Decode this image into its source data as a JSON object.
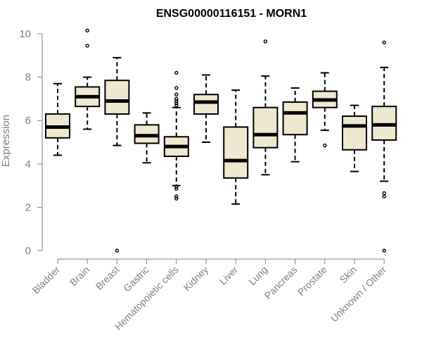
{
  "chart_data": {
    "type": "box",
    "title": "ENSG00000116151 - MORN1",
    "xlabel": "",
    "ylabel": "Expression",
    "ylim": [
      0,
      10
    ],
    "yticks": [
      0,
      2,
      4,
      6,
      8,
      10
    ],
    "grid": false,
    "box_fill": "#EEE8D0",
    "categories": [
      "Bladder",
      "Brain",
      "Breast",
      "Gastric",
      "Hematopoietic cells",
      "Kidney",
      "Liver",
      "Lung",
      "Pancreas",
      "Prostate",
      "Skin",
      "Unknown / Other"
    ],
    "boxes": [
      {
        "whislo": 4.4,
        "q1": 5.2,
        "med": 5.7,
        "q3": 6.3,
        "whishi": 7.7,
        "fliers": []
      },
      {
        "whislo": 5.6,
        "q1": 6.65,
        "med": 7.1,
        "q3": 7.55,
        "whishi": 8.0,
        "fliers": [
          9.45,
          10.15
        ]
      },
      {
        "whislo": 4.85,
        "q1": 6.3,
        "med": 6.9,
        "q3": 7.85,
        "whishi": 8.9,
        "fliers": [
          0.0
        ]
      },
      {
        "whislo": 4.05,
        "q1": 4.95,
        "med": 5.3,
        "q3": 5.8,
        "whishi": 6.35,
        "fliers": []
      },
      {
        "whislo": 3.0,
        "q1": 4.35,
        "med": 4.8,
        "q3": 5.25,
        "whishi": 6.6,
        "fliers": [
          2.4,
          2.5,
          2.85,
          2.95,
          6.7,
          6.8,
          6.9,
          7.0,
          7.2,
          7.5,
          8.2
        ]
      },
      {
        "whislo": 5.0,
        "q1": 6.3,
        "med": 6.85,
        "q3": 7.2,
        "whishi": 8.1,
        "fliers": []
      },
      {
        "whislo": 2.15,
        "q1": 3.35,
        "med": 4.15,
        "q3": 5.7,
        "whishi": 7.4,
        "fliers": []
      },
      {
        "whislo": 3.5,
        "q1": 4.75,
        "med": 5.35,
        "q3": 6.6,
        "whishi": 8.05,
        "fliers": [
          9.65
        ]
      },
      {
        "whislo": 4.1,
        "q1": 5.35,
        "med": 6.35,
        "q3": 6.85,
        "whishi": 7.5,
        "fliers": []
      },
      {
        "whislo": 5.55,
        "q1": 6.6,
        "med": 6.95,
        "q3": 7.35,
        "whishi": 8.2,
        "fliers": [
          4.85
        ]
      },
      {
        "whislo": 3.65,
        "q1": 4.65,
        "med": 5.75,
        "q3": 6.2,
        "whishi": 6.7,
        "fliers": []
      },
      {
        "whislo": 3.2,
        "q1": 5.1,
        "med": 5.8,
        "q3": 6.65,
        "whishi": 8.45,
        "fliers": [
          0.0,
          2.5,
          2.65,
          9.6
        ]
      }
    ]
  }
}
